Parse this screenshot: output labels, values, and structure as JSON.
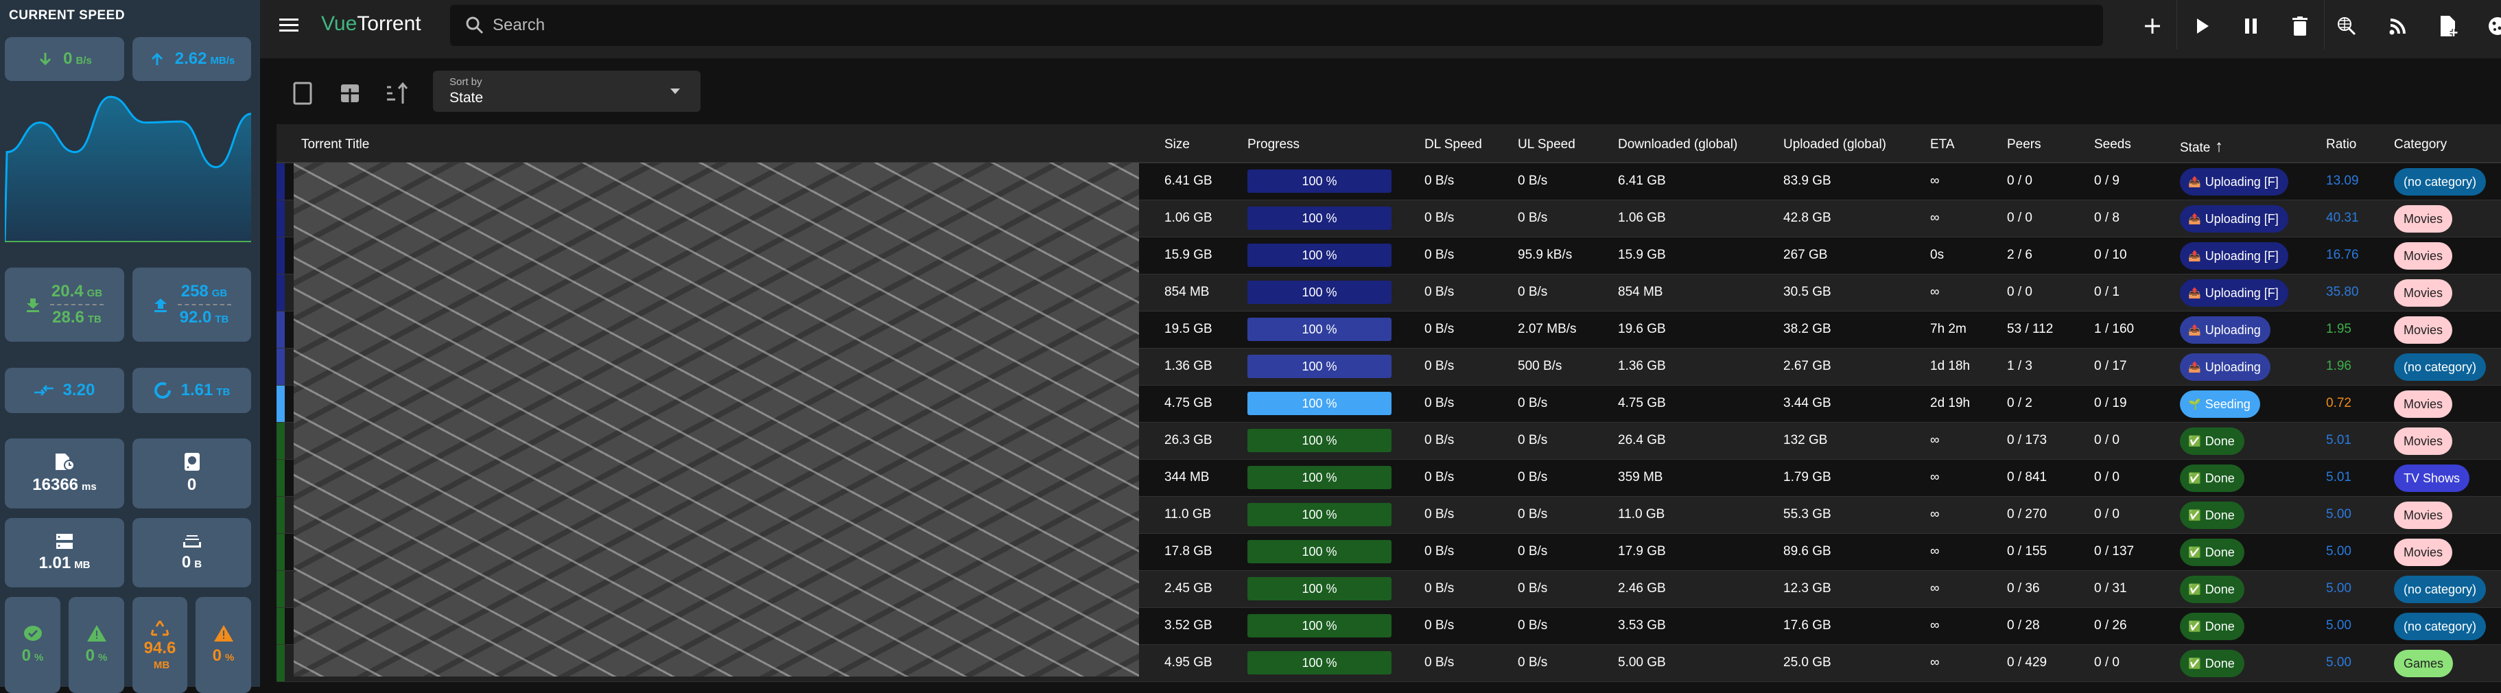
{
  "sidebar": {
    "title": "CURRENT SPEED",
    "dl_speed": {
      "value": "0",
      "unit": "B/s",
      "icon": "arrow-down-icon"
    },
    "ul_speed": {
      "value": "2.62",
      "unit": "MB/s",
      "icon": "arrow-up-icon"
    },
    "speed_history": {
      "series": "upload",
      "unit": "MB/s",
      "values": [
        0,
        1.83,
        2.44,
        1.83,
        2.97,
        2.44,
        2.46,
        1.52,
        2.62
      ],
      "ymax": 3.0,
      "line_color": "#03a9f4",
      "baseline_color": "#4caf50"
    },
    "downloaded": {
      "session": "20.4",
      "session_unit": "GB",
      "alltime": "28.6",
      "alltime_unit": "TB"
    },
    "uploaded": {
      "session": "258",
      "session_unit": "GB",
      "alltime": "92.0",
      "alltime_unit": "TB"
    },
    "ratio": {
      "value": "3.20"
    },
    "free_space": {
      "value": "1.61",
      "unit": "TB"
    },
    "queue_time": {
      "value": "16366",
      "unit": "ms"
    },
    "disk_jobs": {
      "value": "0"
    },
    "buffer": {
      "value": "1.01",
      "unit": "MB"
    },
    "queued_io": {
      "value": "0",
      "unit": "B"
    },
    "cache_hits": {
      "value": "0",
      "unit": "%"
    },
    "write_overload": {
      "value": "0",
      "unit": "%"
    },
    "wasted": {
      "value": "94.6",
      "unit": "MB"
    },
    "read_overload": {
      "value": "0",
      "unit": "%"
    }
  },
  "header": {
    "logo_a": "Vue",
    "logo_b": "Torrent",
    "search_placeholder": "Search"
  },
  "toolbar": {
    "sort_label": "Sort by",
    "sort_value": "State"
  },
  "table": {
    "columns": [
      "Torrent Title",
      "Size",
      "Progress",
      "DL Speed",
      "UL Speed",
      "Downloaded (global)",
      "Uploaded (global)",
      "ETA",
      "Peers",
      "Seeds",
      "State",
      "Ratio",
      "Category"
    ],
    "sorted_column": "State",
    "sort_direction": "ascending",
    "state_colors": {
      "Uploading [F]": "#1a237e",
      "Uploading": "#303f9f",
      "Seeding": "#42a5f5",
      "Done": "#1b5e20"
    },
    "state_icons": {
      "Uploading [F]": "📤",
      "Uploading": "📤",
      "Seeding": "🌱",
      "Done": "✅"
    },
    "category_colors": {
      "(no category)": [
        "#0b6399",
        "#ffffff"
      ],
      "Movies": [
        "#ffcdd2",
        "#222222"
      ],
      "TV Shows": [
        "#3b3fd4",
        "#ffffff"
      ],
      "Games": [
        "#8ee27a",
        "#222222"
      ]
    },
    "rows": [
      {
        "size": "6.41 GB",
        "progress": "100 %",
        "dl": "0 B/s",
        "ul": "0 B/s",
        "downloaded": "6.41 GB",
        "uploaded": "83.9 GB",
        "eta": "∞",
        "peers": "0 / 0",
        "seeds": "0 / 9",
        "state": "Uploading [F]",
        "ratio": "13.09",
        "ratio_color": "#2a7ade",
        "category": "(no category)"
      },
      {
        "size": "1.06 GB",
        "progress": "100 %",
        "dl": "0 B/s",
        "ul": "0 B/s",
        "downloaded": "1.06 GB",
        "uploaded": "42.8 GB",
        "eta": "∞",
        "peers": "0 / 0",
        "seeds": "0 / 8",
        "state": "Uploading [F]",
        "ratio": "40.31",
        "ratio_color": "#2a7ade",
        "category": "Movies"
      },
      {
        "size": "15.9 GB",
        "progress": "100 %",
        "dl": "0 B/s",
        "ul": "95.9 kB/s",
        "downloaded": "15.9 GB",
        "uploaded": "267 GB",
        "eta": "0s",
        "peers": "2 / 6",
        "seeds": "0 / 10",
        "state": "Uploading [F]",
        "ratio": "16.76",
        "ratio_color": "#2a7ade",
        "category": "Movies"
      },
      {
        "size": "854 MB",
        "progress": "100 %",
        "dl": "0 B/s",
        "ul": "0 B/s",
        "downloaded": "854 MB",
        "uploaded": "30.5 GB",
        "eta": "∞",
        "peers": "0 / 0",
        "seeds": "0 / 1",
        "state": "Uploading [F]",
        "ratio": "35.80",
        "ratio_color": "#2a7ade",
        "category": "Movies"
      },
      {
        "size": "19.5 GB",
        "progress": "100 %",
        "dl": "0 B/s",
        "ul": "2.07 MB/s",
        "downloaded": "19.6 GB",
        "uploaded": "38.2 GB",
        "eta": "7h 2m",
        "peers": "53 / 112",
        "seeds": "1 / 160",
        "state": "Uploading",
        "ratio": "1.95",
        "ratio_color": "#3fae4a",
        "category": "Movies"
      },
      {
        "size": "1.36 GB",
        "progress": "100 %",
        "dl": "0 B/s",
        "ul": "500 B/s",
        "downloaded": "1.36 GB",
        "uploaded": "2.67 GB",
        "eta": "1d 18h",
        "peers": "1 / 3",
        "seeds": "0 / 17",
        "state": "Uploading",
        "ratio": "1.96",
        "ratio_color": "#3fae4a",
        "category": "(no category)"
      },
      {
        "size": "4.75 GB",
        "progress": "100 %",
        "dl": "0 B/s",
        "ul": "0 B/s",
        "downloaded": "4.75 GB",
        "uploaded": "3.44 GB",
        "eta": "2d 19h",
        "peers": "0 / 2",
        "seeds": "0 / 19",
        "state": "Seeding",
        "ratio": "0.72",
        "ratio_color": "#ef8a1a",
        "category": "Movies"
      },
      {
        "size": "26.3 GB",
        "progress": "100 %",
        "dl": "0 B/s",
        "ul": "0 B/s",
        "downloaded": "26.4 GB",
        "uploaded": "132 GB",
        "eta": "∞",
        "peers": "0 / 173",
        "seeds": "0 / 0",
        "state": "Done",
        "ratio": "5.01",
        "ratio_color": "#2a7ade",
        "category": "Movies"
      },
      {
        "size": "344 MB",
        "progress": "100 %",
        "dl": "0 B/s",
        "ul": "0 B/s",
        "downloaded": "359 MB",
        "uploaded": "1.79 GB",
        "eta": "∞",
        "peers": "0 / 841",
        "seeds": "0 / 0",
        "state": "Done",
        "ratio": "5.01",
        "ratio_color": "#2a7ade",
        "category": "TV Shows"
      },
      {
        "size": "11.0 GB",
        "progress": "100 %",
        "dl": "0 B/s",
        "ul": "0 B/s",
        "downloaded": "11.0 GB",
        "uploaded": "55.3 GB",
        "eta": "∞",
        "peers": "0 / 270",
        "seeds": "0 / 0",
        "state": "Done",
        "ratio": "5.00",
        "ratio_color": "#2a7ade",
        "category": "Movies"
      },
      {
        "size": "17.8 GB",
        "progress": "100 %",
        "dl": "0 B/s",
        "ul": "0 B/s",
        "downloaded": "17.9 GB",
        "uploaded": "89.6 GB",
        "eta": "∞",
        "peers": "0 / 155",
        "seeds": "0 / 137",
        "state": "Done",
        "ratio": "5.00",
        "ratio_color": "#2a7ade",
        "category": "Movies"
      },
      {
        "size": "2.45 GB",
        "progress": "100 %",
        "dl": "0 B/s",
        "ul": "0 B/s",
        "downloaded": "2.46 GB",
        "uploaded": "12.3 GB",
        "eta": "∞",
        "peers": "0 / 36",
        "seeds": "0 / 31",
        "state": "Done",
        "ratio": "5.00",
        "ratio_color": "#2a7ade",
        "category": "(no category)"
      },
      {
        "size": "3.52 GB",
        "progress": "100 %",
        "dl": "0 B/s",
        "ul": "0 B/s",
        "downloaded": "3.53 GB",
        "uploaded": "17.6 GB",
        "eta": "∞",
        "peers": "0 / 28",
        "seeds": "0 / 26",
        "state": "Done",
        "ratio": "5.00",
        "ratio_color": "#2a7ade",
        "category": "(no category)"
      },
      {
        "size": "4.95 GB",
        "progress": "100 %",
        "dl": "0 B/s",
        "ul": "0 B/s",
        "downloaded": "5.00 GB",
        "uploaded": "25.0 GB",
        "eta": "∞",
        "peers": "0 / 429",
        "seeds": "0 / 0",
        "state": "Done",
        "ratio": "5.00",
        "ratio_color": "#2a7ade",
        "category": "Games"
      }
    ]
  }
}
